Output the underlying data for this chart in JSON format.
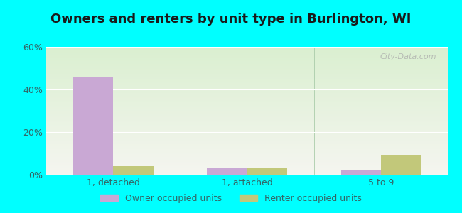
{
  "title": "Owners and renters by unit type in Burlington, WI",
  "categories": [
    "1, detached",
    "1, attached",
    "5 to 9"
  ],
  "owner_values": [
    46,
    3,
    2
  ],
  "renter_values": [
    4,
    3,
    9
  ],
  "owner_color": "#c9a8d4",
  "renter_color": "#c2c87a",
  "ylim": [
    0,
    60
  ],
  "yticks": [
    0,
    20,
    40,
    60
  ],
  "ytick_labels": [
    "0%",
    "20%",
    "40%",
    "60%"
  ],
  "bg_top": "#daefd0",
  "bg_bottom": "#f5f5f0",
  "outer_background": "#00ffff",
  "watermark": "City-Data.com",
  "legend_owner": "Owner occupied units",
  "legend_renter": "Renter occupied units",
  "bar_width": 0.3,
  "title_fontsize": 13,
  "tick_label_color": "#336666"
}
